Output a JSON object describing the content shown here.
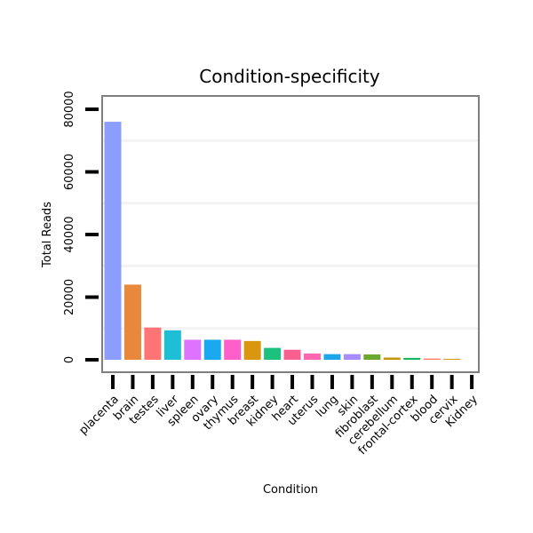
{
  "chart_data": {
    "type": "bar",
    "title": "Condition-specificity",
    "xlabel": "Condition",
    "ylabel": "Total Reads",
    "ylim": [
      0,
      80000
    ],
    "yticks": [
      0,
      20000,
      40000,
      60000,
      80000
    ],
    "categories": [
      "placenta",
      "brain",
      "testes",
      "liver",
      "spleen",
      "ovary",
      "thymus",
      "breast",
      "kidney",
      "heart",
      "uterus",
      "lung",
      "skin",
      "fibroblast",
      "cerebellum",
      "frontal-cortex",
      "blood",
      "cervix",
      "Kidney"
    ],
    "values": [
      76000,
      24000,
      10300,
      9400,
      6400,
      6400,
      6400,
      6000,
      3800,
      3200,
      2000,
      1800,
      1800,
      1700,
      700,
      600,
      400,
      300,
      0
    ],
    "colors": [
      "#8b9dff",
      "#e8883a",
      "#ff7575",
      "#1ebfd6",
      "#df72ff",
      "#1aa8f0",
      "#ff5fc8",
      "#d9960e",
      "#1dc17e",
      "#f9608f",
      "#ff67b0",
      "#1ea6ea",
      "#a88cff",
      "#6ba82f",
      "#c4960b",
      "#15b85e",
      "#ff7e6c",
      "#d19a0c",
      "#e08cf0"
    ],
    "grid": true
  }
}
